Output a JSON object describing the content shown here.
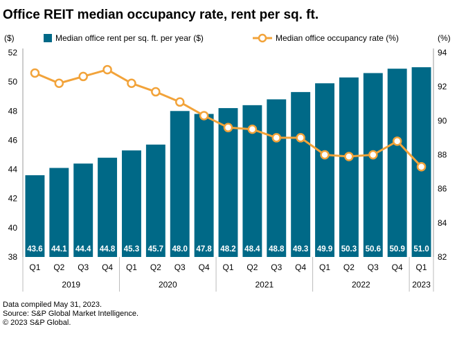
{
  "chart_data": {
    "type": "bar+line",
    "title": "Office REIT median occupancy rate, rent per sq. ft.",
    "left_axis_label": "($)",
    "right_axis_label": "(%)",
    "left_ylim": [
      38,
      52
    ],
    "left_ticks": [
      "38",
      "40",
      "42",
      "44",
      "46",
      "48",
      "50",
      "52"
    ],
    "right_ylim": [
      82,
      94
    ],
    "right_ticks": [
      "82",
      "84",
      "86",
      "88",
      "90",
      "92",
      "94"
    ],
    "legend_placement": "top",
    "categories": [
      "Q1",
      "Q2",
      "Q3",
      "Q4",
      "Q1",
      "Q2",
      "Q3",
      "Q4",
      "Q1",
      "Q2",
      "Q3",
      "Q4",
      "Q1",
      "Q2",
      "Q3",
      "Q4",
      "Q1"
    ],
    "years": [
      {
        "label": "2019",
        "count": 4
      },
      {
        "label": "2020",
        "count": 4
      },
      {
        "label": "2021",
        "count": 4
      },
      {
        "label": "2022",
        "count": 4
      },
      {
        "label": "2023",
        "count": 1
      }
    ],
    "series": [
      {
        "name": "Median office rent per sq. ft. per year ($)",
        "type": "bar",
        "axis": "left",
        "color": "#006987",
        "values": [
          43.6,
          44.1,
          44.4,
          44.8,
          45.3,
          45.7,
          48.0,
          47.8,
          48.2,
          48.4,
          48.8,
          49.3,
          49.9,
          50.3,
          50.6,
          50.9,
          51.0
        ],
        "labels": [
          "43.6",
          "44.1",
          "44.4",
          "44.8",
          "45.3",
          "45.7",
          "48.0",
          "47.8",
          "48.2",
          "48.4",
          "48.8",
          "49.3",
          "49.9",
          "50.3",
          "50.6",
          "50.9",
          "51.0"
        ]
      },
      {
        "name": "Median office occupancy rate (%)",
        "type": "line",
        "axis": "right",
        "color": "#F2A33A",
        "values": [
          92.8,
          92.2,
          92.6,
          93.0,
          92.2,
          91.7,
          91.1,
          90.3,
          89.6,
          89.5,
          89.0,
          89.0,
          88.0,
          87.9,
          88.0,
          88.8,
          87.3
        ]
      }
    ]
  },
  "footer": {
    "line1": "Data compiled May 31, 2023.",
    "line2": "Source: S&P Global Market Intelligence.",
    "line3": "© 2023 S&P Global."
  }
}
